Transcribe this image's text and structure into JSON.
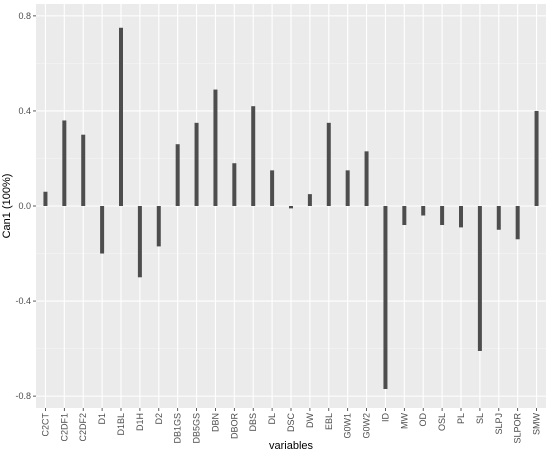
{
  "chart_data": {
    "type": "bar",
    "xlabel": "variables",
    "ylabel": "Can1 (100%)",
    "ylim": [
      -0.85,
      0.85
    ],
    "yticks": [
      -0.8,
      -0.4,
      0.0,
      0.4,
      0.8
    ],
    "ytick_labels": [
      "-0.8",
      "-0.4",
      "0.0",
      "0.4",
      "0.8"
    ],
    "categories": [
      "C2CT",
      "C2DF1",
      "C2DF2",
      "D1",
      "D1BL",
      "D1H",
      "D2",
      "DB1GS",
      "DB5GS",
      "DBN",
      "DBOR",
      "DBS",
      "DL",
      "DSC",
      "DW",
      "EBL",
      "G0W1",
      "G0W2",
      "ID",
      "MW",
      "OD",
      "OSL",
      "PL",
      "SL",
      "SLPJ",
      "SLPOR",
      "SMW"
    ],
    "values": [
      0.06,
      0.36,
      0.3,
      -0.2,
      0.75,
      -0.3,
      -0.17,
      0.26,
      0.35,
      0.49,
      0.18,
      0.42,
      0.15,
      -0.01,
      0.05,
      0.35,
      0.15,
      0.23,
      -0.77,
      -0.08,
      -0.04,
      -0.08,
      -0.09,
      -0.61,
      -0.1,
      -0.14,
      0.4
    ],
    "grid": true,
    "colors": {
      "panel": "#ebebeb",
      "grid_major": "#ffffff",
      "grid_minor": "#f5f5f5",
      "bar": "#4d4d4d"
    }
  }
}
